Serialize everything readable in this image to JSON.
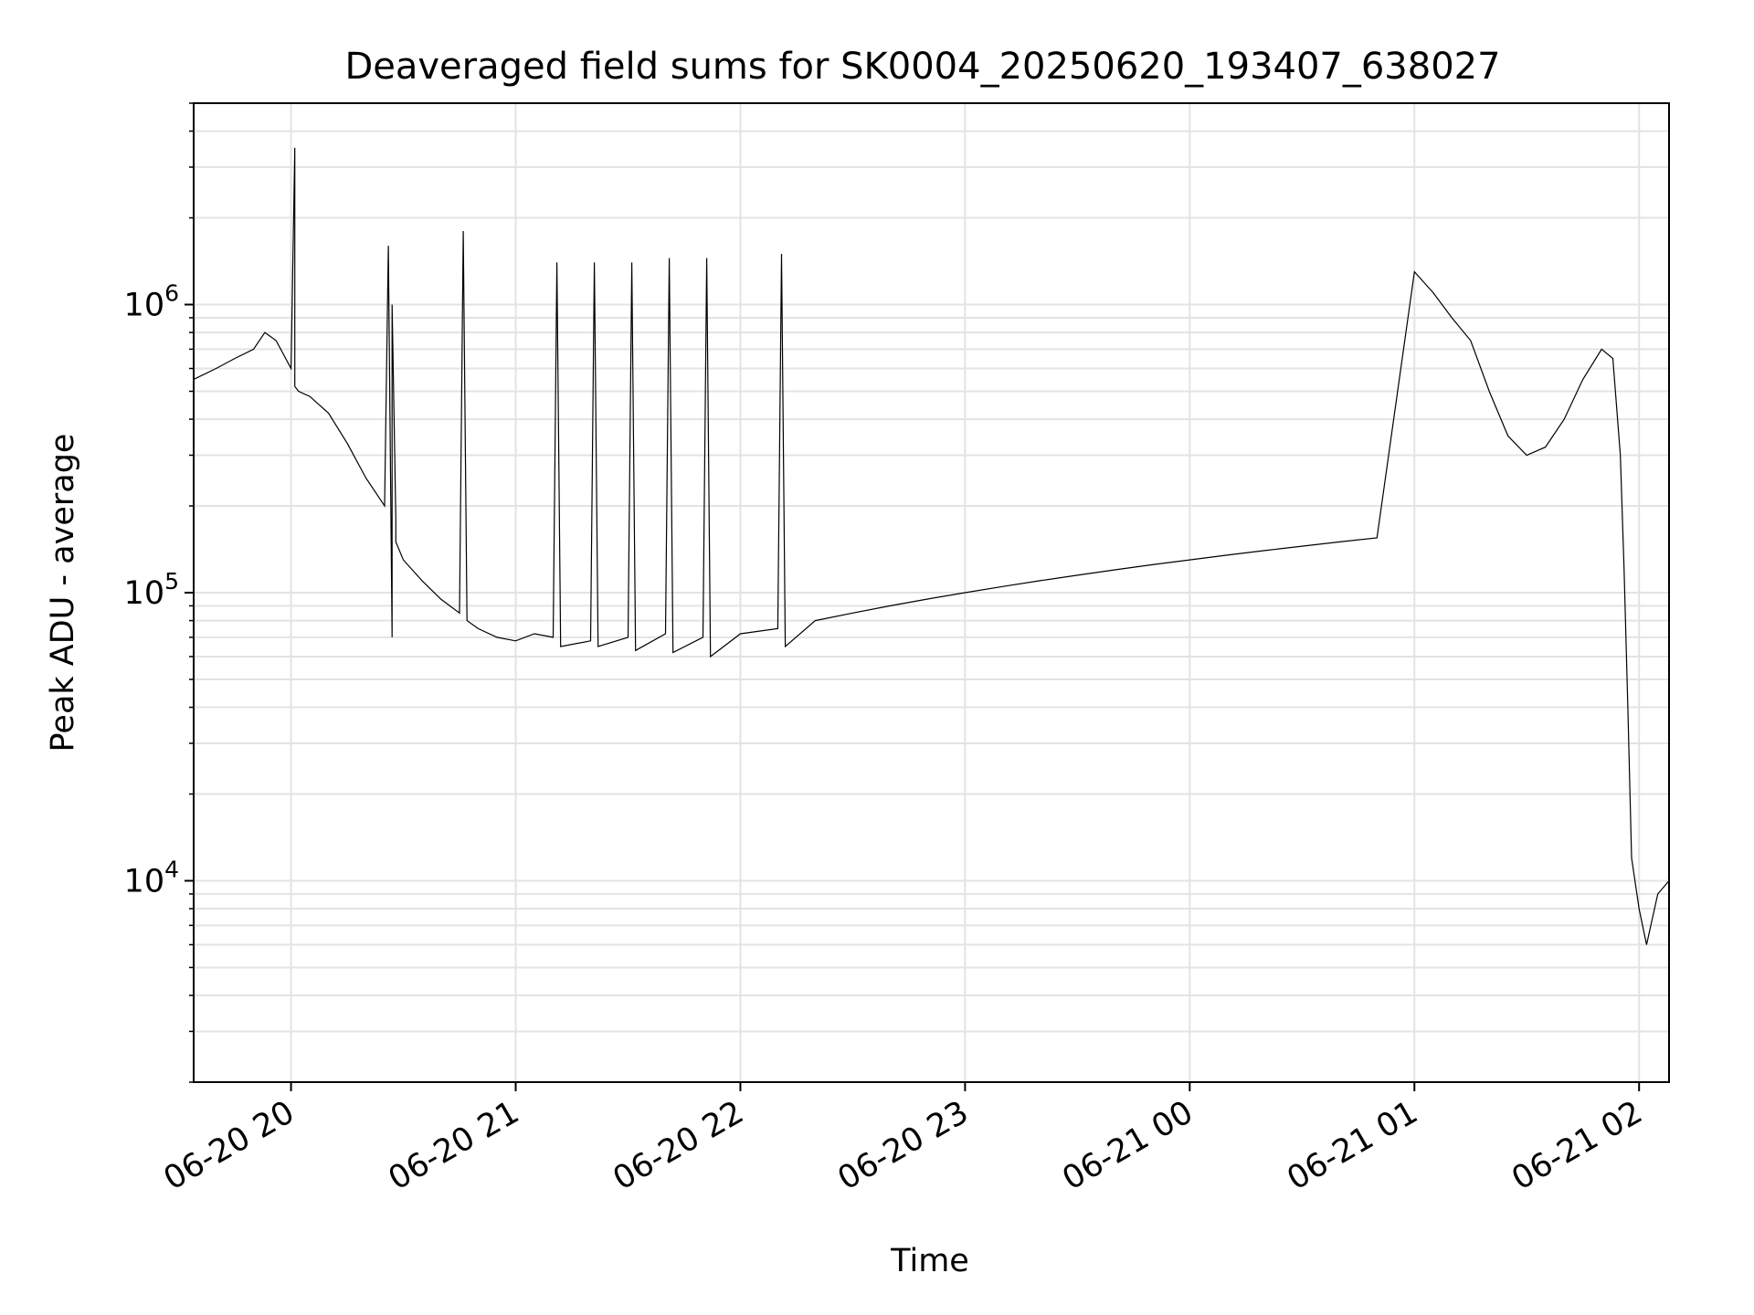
{
  "chart_data": {
    "type": "line",
    "title": "Deaveraged field sums for SK0004_20250620_193407_638027",
    "xlabel": "Time",
    "ylabel": "Peak ADU - average",
    "yscale": "log",
    "ylim": [
      2000,
      5000000
    ],
    "xlim": [
      "2025-06-20 19:34",
      "2025-06-21 02:08"
    ],
    "grid": true,
    "line_color": "#000000",
    "x_ticks": [
      {
        "label": "06-20 20",
        "time": "2025-06-20 20:00"
      },
      {
        "label": "06-20 21",
        "time": "2025-06-20 21:00"
      },
      {
        "label": "06-20 22",
        "time": "2025-06-20 22:00"
      },
      {
        "label": "06-20 23",
        "time": "2025-06-20 23:00"
      },
      {
        "label": "06-21 00",
        "time": "2025-06-21 00:00"
      },
      {
        "label": "06-21 01",
        "time": "2025-06-21 01:00"
      },
      {
        "label": "06-21 02",
        "time": "2025-06-21 02:00"
      }
    ],
    "y_ticks": [
      {
        "base": "10",
        "exp": "4",
        "value": 10000
      },
      {
        "base": "10",
        "exp": "5",
        "value": 100000
      },
      {
        "base": "10",
        "exp": "6",
        "value": 1000000
      }
    ],
    "series": [
      {
        "x": [
          "2025-06-20 19:34",
          "2025-06-20 19:40",
          "2025-06-20 19:45",
          "2025-06-20 19:50",
          "2025-06-20 19:53",
          "2025-06-20 19:56",
          "2025-06-20 20:00",
          "2025-06-20 20:01",
          "2025-06-20 20:01",
          "2025-06-20 20:02",
          "2025-06-20 20:05",
          "2025-06-20 20:10",
          "2025-06-20 20:15",
          "2025-06-20 20:20",
          "2025-06-20 20:25",
          "2025-06-20 20:26",
          "2025-06-20 20:27",
          "2025-06-20 20:27",
          "2025-06-20 20:28",
          "2025-06-20 20:28",
          "2025-06-20 20:30",
          "2025-06-20 20:35",
          "2025-06-20 20:40",
          "2025-06-20 20:45",
          "2025-06-20 20:46",
          "2025-06-20 20:47",
          "2025-06-20 20:50",
          "2025-06-20 20:55",
          "2025-06-20 21:00",
          "2025-06-20 21:05",
          "2025-06-20 21:10",
          "2025-06-20 21:11",
          "2025-06-20 21:12",
          "2025-06-20 21:20",
          "2025-06-20 21:21",
          "2025-06-20 21:22",
          "2025-06-20 21:30",
          "2025-06-20 21:31",
          "2025-06-20 21:32",
          "2025-06-20 21:40",
          "2025-06-20 21:41",
          "2025-06-20 21:42",
          "2025-06-20 21:50",
          "2025-06-20 21:51",
          "2025-06-20 21:52",
          "2025-06-20 22:00",
          "2025-06-20 22:10",
          "2025-06-20 22:11",
          "2025-06-20 22:12",
          "2025-06-20 22:20",
          "2025-06-20 22:30",
          "2025-06-20 22:40",
          "2025-06-20 22:50",
          "2025-06-20 23:00",
          "2025-06-20 23:10",
          "2025-06-20 23:20",
          "2025-06-20 23:30",
          "2025-06-20 23:40",
          "2025-06-20 23:50",
          "2025-06-21 00:00",
          "2025-06-21 00:10",
          "2025-06-21 00:20",
          "2025-06-21 00:30",
          "2025-06-21 00:40",
          "2025-06-21 00:50",
          "2025-06-21 01:00",
          "2025-06-21 01:05",
          "2025-06-21 01:10",
          "2025-06-21 01:15",
          "2025-06-21 01:20",
          "2025-06-21 01:25",
          "2025-06-21 01:30",
          "2025-06-21 01:35",
          "2025-06-21 01:40",
          "2025-06-21 01:45",
          "2025-06-21 01:50",
          "2025-06-21 01:53",
          "2025-06-21 01:55",
          "2025-06-21 01:56",
          "2025-06-21 01:57",
          "2025-06-21 01:58",
          "2025-06-21 02:00",
          "2025-06-21 02:02",
          "2025-06-21 02:05",
          "2025-06-21 02:08"
        ],
        "y": [
          550000,
          600000,
          650000,
          700000,
          800000,
          750000,
          600000,
          3500000,
          520000,
          500000,
          480000,
          420000,
          330000,
          250000,
          200000,
          1600000,
          70000,
          1000000,
          180000,
          150000,
          130000,
          110000,
          95000,
          85000,
          1800000,
          80000,
          75000,
          70000,
          68000,
          72000,
          70000,
          1400000,
          65000,
          68000,
          1400000,
          65000,
          70000,
          1400000,
          63000,
          72000,
          1450000,
          62000,
          70000,
          1450000,
          60000,
          72000,
          75000,
          1500000,
          65000,
          80000,
          85000,
          90000,
          95000,
          100000,
          105000,
          110000,
          115000,
          120000,
          125000,
          130000,
          135000,
          140000,
          145000,
          150000,
          155000,
          1300000,
          1100000,
          900000,
          750000,
          500000,
          350000,
          300000,
          320000,
          400000,
          550000,
          700000,
          650000,
          300000,
          120000,
          40000,
          12000,
          8000,
          6000,
          9000,
          10000
        ]
      }
    ]
  }
}
